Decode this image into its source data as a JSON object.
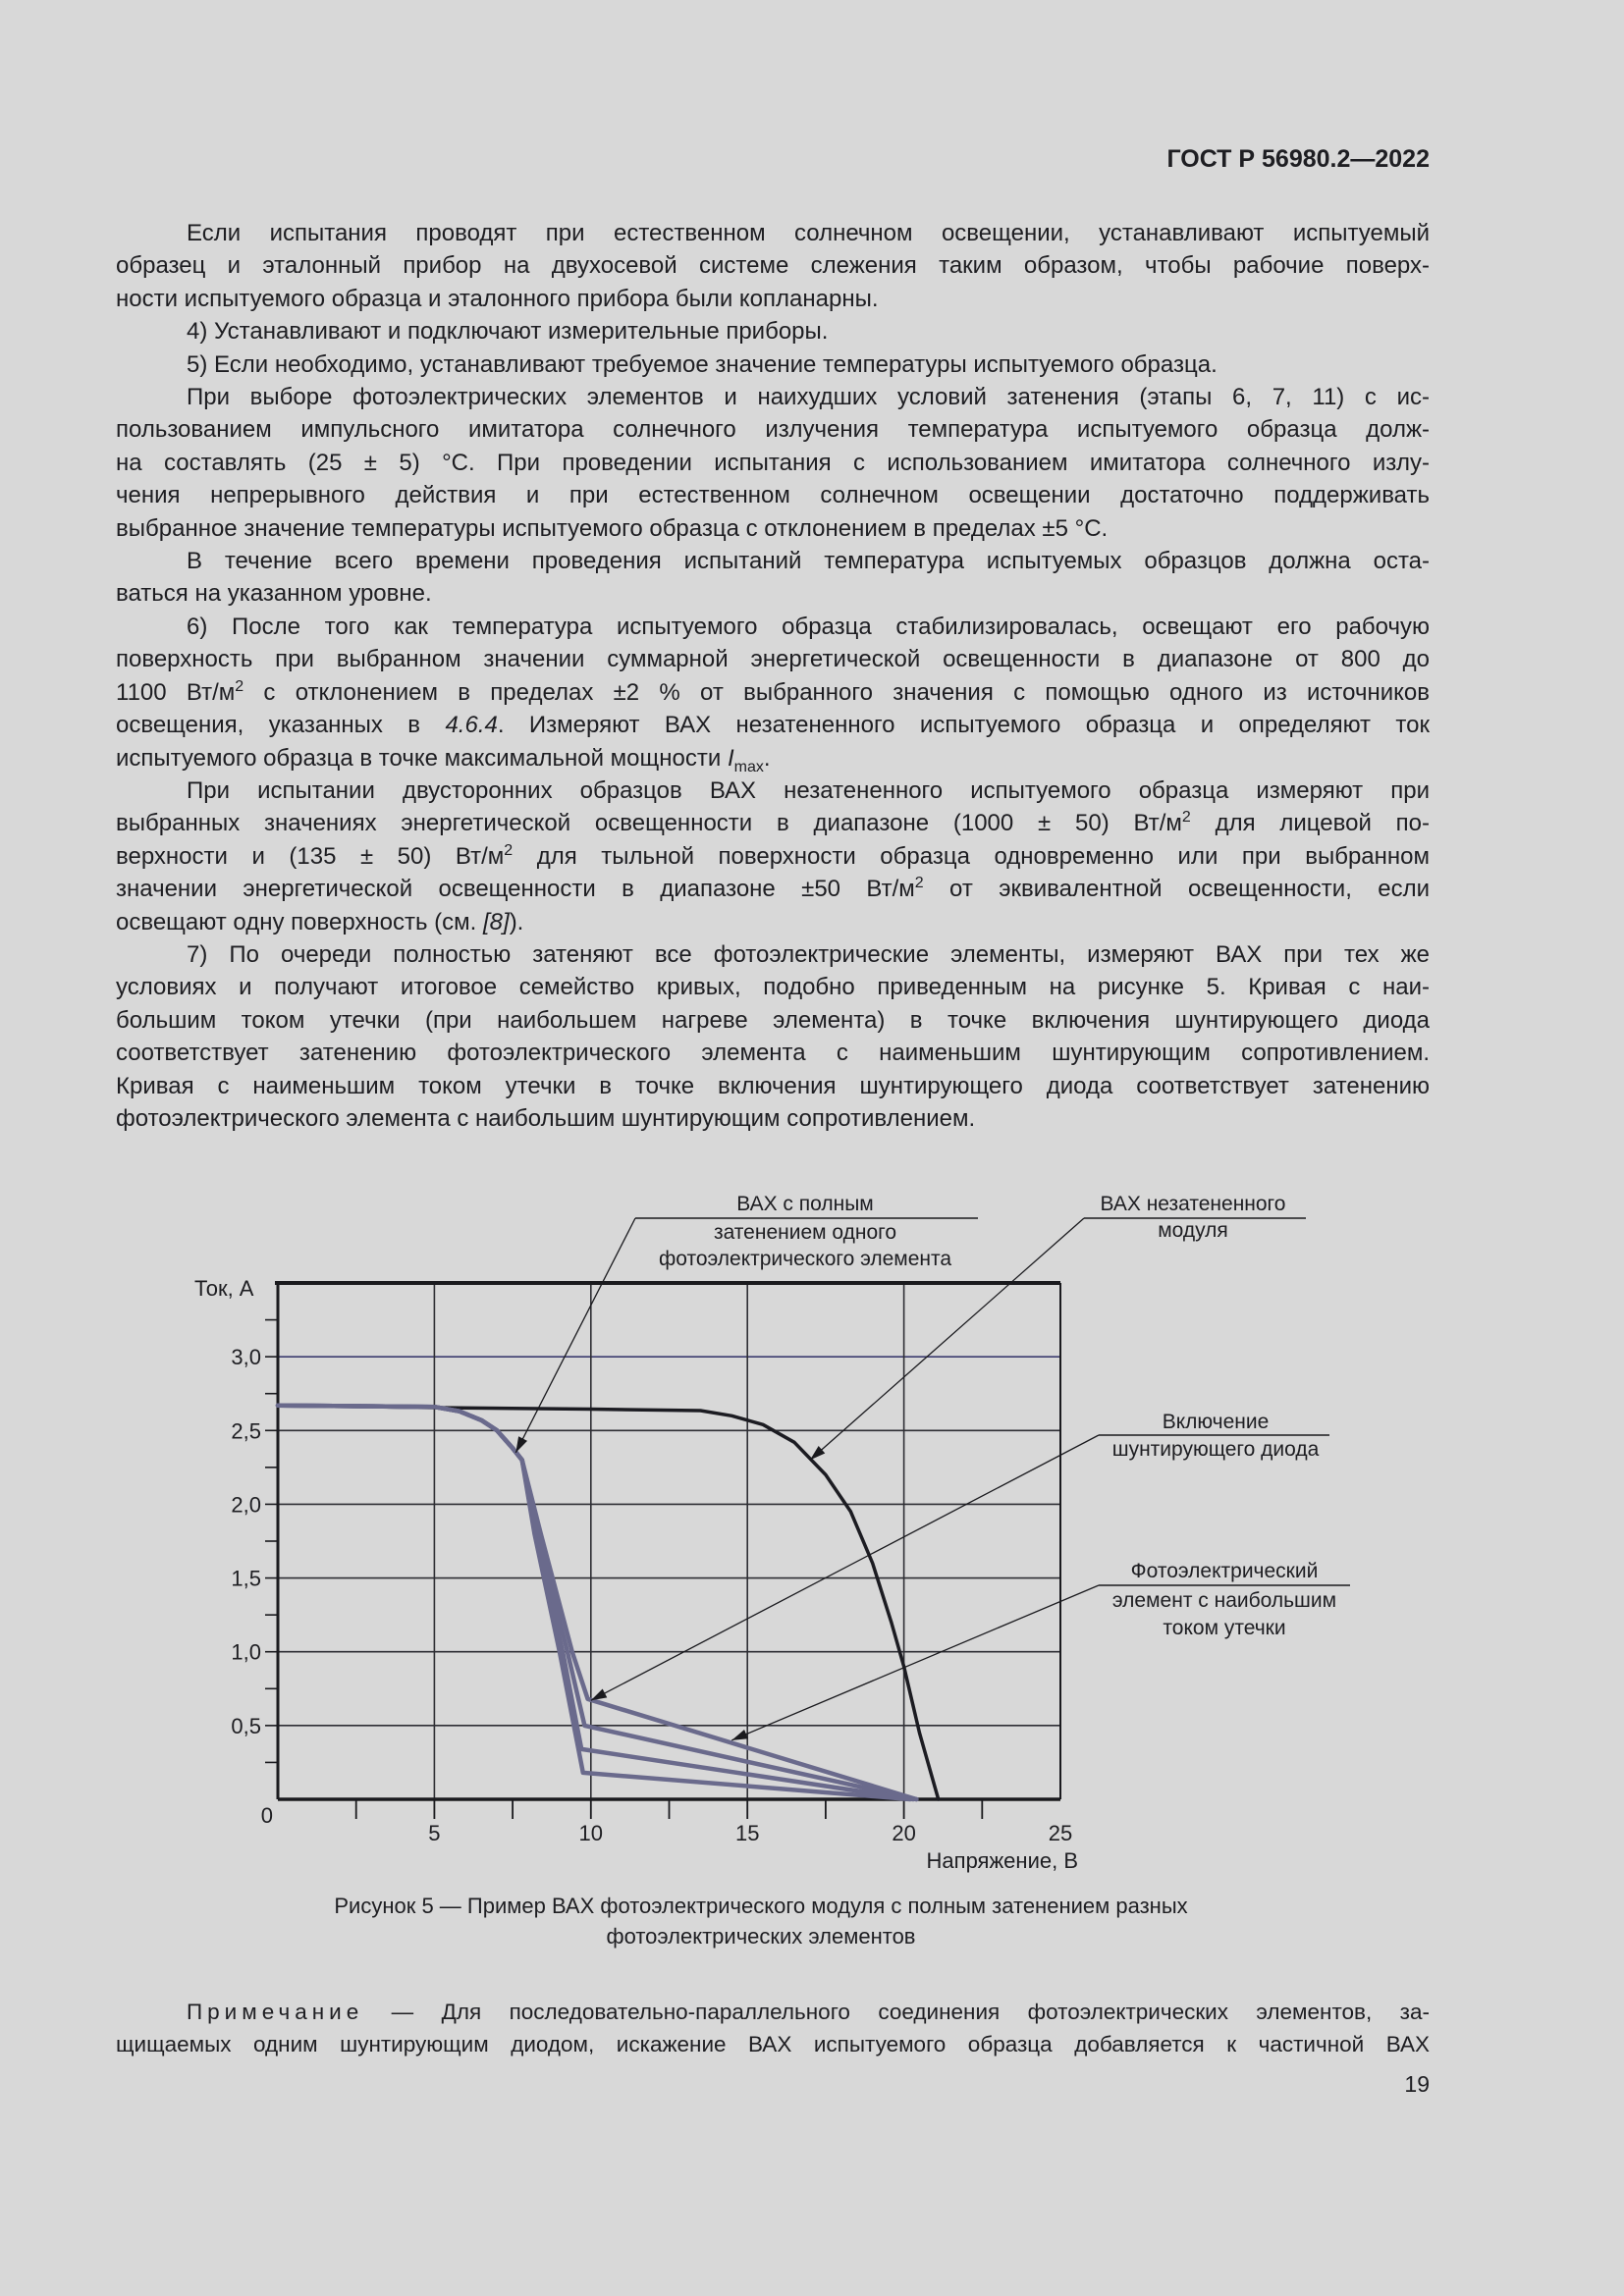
{
  "header": {
    "doc_id": "ГОСТ Р 56980.2—2022"
  },
  "body": {
    "paragraphs": [
      {
        "lines": [
          [
            {
              "t": "Если испытания проводят при естественном солнечном освещении, устанавливают испытуемый"
            }
          ],
          [
            {
              "t": "образец и эталонный прибор на двухосевой системе слежения таким образом, чтобы рабочие поверх-"
            }
          ],
          [
            {
              "t": "ности испытуемого образца и эталонного прибора были копланарны."
            }
          ]
        ]
      },
      {
        "lines": [
          [
            {
              "t": "4) Устанавливают и подключают измерительные приборы."
            }
          ]
        ]
      },
      {
        "lines": [
          [
            {
              "t": "5) Если необходимо, устанавливают требуемое значение температуры испытуемого образца."
            }
          ]
        ]
      },
      {
        "lines": [
          [
            {
              "t": "При выборе фотоэлектрических элементов и наихудших условий затенения (этапы 6, 7, 11) с ис-"
            }
          ],
          [
            {
              "t": "пользованием импульсного имитатора солнечного излучения температура испытуемого образца долж-"
            }
          ],
          [
            {
              "t": "на составлять (25 ± 5) °C. При проведении испытания с использованием имитатора солнечного излу-"
            }
          ],
          [
            {
              "t": "чения непрерывного действия и при естественном солнечном освещении достаточно поддерживать"
            }
          ],
          [
            {
              "t": "выбранное значение температуры испытуемого образца с отклонением в пределах ±5 °C."
            }
          ]
        ]
      },
      {
        "lines": [
          [
            {
              "t": "В течение всего времени проведения испытаний температура испытуемых образцов должна оста-"
            }
          ],
          [
            {
              "t": "ваться на указанном уровне."
            }
          ]
        ]
      },
      {
        "lines": [
          [
            {
              "t": "6) После того как температура испытуемого образца стабилизировалась, освещают его рабочую"
            }
          ],
          [
            {
              "t": "поверхность при выбранном значении суммарной энергетической освещенности в диапазоне от 800 до"
            }
          ],
          [
            {
              "t": "1100 Вт/м"
            },
            {
              "sup": "2"
            },
            {
              "t": " с отклонением в пределах ±2 % от выбранного значения с помощью одного из источников"
            }
          ],
          [
            {
              "t": "освещения, указанных в "
            },
            {
              "i": "4.6.4"
            },
            {
              "t": ". Измеряют ВАХ незатененного испытуемого образца и определяют ток"
            }
          ],
          [
            {
              "t": "испытуемого образца в точке максимальной мощности "
            },
            {
              "i": "I"
            },
            {
              "sub": "max"
            },
            {
              "t": "."
            }
          ]
        ]
      },
      {
        "lines": [
          [
            {
              "t": "При испытании двусторонних образцов ВАХ незатененного испытуемого образца измеряют при"
            }
          ],
          [
            {
              "t": "выбранных значениях энергетической освещенности в диапазоне (1000 ± 50) Вт/м"
            },
            {
              "sup": "2"
            },
            {
              "t": " для лицевой по-"
            }
          ],
          [
            {
              "t": "верхности и (135 ± 50) Вт/м"
            },
            {
              "sup": "2"
            },
            {
              "t": " для тыльной поверхности образца одновременно или при выбранном"
            }
          ],
          [
            {
              "t": "значении энергетической освещенности в диапазоне ±50 Вт/м"
            },
            {
              "sup": "2"
            },
            {
              "t": " от эквивалентной освещенности, если"
            }
          ],
          [
            {
              "t": "освещают одну поверхность (см. "
            },
            {
              "i": "[8]"
            },
            {
              "t": ")."
            }
          ]
        ]
      },
      {
        "lines": [
          [
            {
              "t": "7) По очереди полностью затеняют все фотоэлектрические элементы, измеряют ВАХ при тех же"
            }
          ],
          [
            {
              "t": "условиях и получают итоговое семейство кривых, подобно приведенным на рисунке 5. Кривая с наи-"
            }
          ],
          [
            {
              "t": "большим током утечки (при наибольшем нагреве элемента) в точке включения шунтирующего диода"
            }
          ],
          [
            {
              "t": "соответствует затенению фотоэлектрического элемента с наименьшим шунтирующим сопротивлением."
            }
          ],
          [
            {
              "t": "Кривая с наименьшим током утечки в точке включения шунтирующего диода соответствует затенению"
            }
          ],
          [
            {
              "t": "фотоэлектрического элемента с наибольшим шунтирующим сопротивлением."
            }
          ]
        ]
      }
    ]
  },
  "chart_data": {
    "type": "line",
    "xlabel": "Напряжение, В",
    "ylabel": "Ток, А",
    "xlim": [
      0,
      25
    ],
    "ylim": [
      0,
      3.5
    ],
    "x_ticks": [
      "5",
      "10",
      "15",
      "20",
      "25"
    ],
    "x_tick_values": [
      5,
      10,
      15,
      20,
      25
    ],
    "y_ticks": [
      "0",
      "0,5",
      "1,0",
      "1,5",
      "2,0",
      "2,5",
      "3,0"
    ],
    "y_tick_values": [
      0,
      0.5,
      1.0,
      1.5,
      2.0,
      2.5,
      3.0
    ],
    "grid": true,
    "colors": {
      "unshaded": "#1c1c22",
      "shaded": "#6a6a8c",
      "grid": "#2e2e34"
    },
    "series": [
      {
        "points": [
          [
            0,
            2.67
          ],
          [
            5,
            2.655
          ],
          [
            10,
            2.645
          ],
          [
            13.5,
            2.635
          ],
          [
            14.5,
            2.6
          ],
          [
            15.5,
            2.54
          ],
          [
            16.5,
            2.42
          ],
          [
            17.5,
            2.2
          ],
          [
            18.3,
            1.95
          ],
          [
            19,
            1.6
          ],
          [
            19.6,
            1.2
          ],
          [
            20,
            0.9
          ],
          [
            20.5,
            0.45
          ],
          [
            21.1,
            0
          ]
        ]
      },
      {
        "points": [
          [
            0,
            2.67
          ],
          [
            5,
            2.66
          ],
          [
            5.8,
            2.63
          ],
          [
            6.5,
            2.57
          ],
          [
            7,
            2.5
          ],
          [
            7.5,
            2.38
          ],
          [
            7.8,
            2.3
          ],
          [
            8.4,
            1.8
          ],
          [
            9.4,
            1.0
          ],
          [
            9.9,
            0.68
          ],
          [
            20.4,
            0
          ]
        ]
      },
      {
        "points": [
          [
            0,
            2.67
          ],
          [
            5,
            2.66
          ],
          [
            5.8,
            2.63
          ],
          [
            6.5,
            2.57
          ],
          [
            7,
            2.5
          ],
          [
            7.5,
            2.38
          ],
          [
            7.8,
            2.3
          ],
          [
            8.3,
            1.8
          ],
          [
            9.25,
            1.0
          ],
          [
            9.8,
            0.5
          ],
          [
            20.4,
            0
          ]
        ]
      },
      {
        "points": [
          [
            0,
            2.67
          ],
          [
            5,
            2.66
          ],
          [
            5.8,
            2.63
          ],
          [
            6.5,
            2.57
          ],
          [
            7,
            2.5
          ],
          [
            7.5,
            2.38
          ],
          [
            7.8,
            2.3
          ],
          [
            8.25,
            1.8
          ],
          [
            9.1,
            1.0
          ],
          [
            9.7,
            0.34
          ],
          [
            20.3,
            0
          ]
        ]
      },
      {
        "points": [
          [
            0,
            2.67
          ],
          [
            5,
            2.66
          ],
          [
            5.8,
            2.63
          ],
          [
            6.5,
            2.57
          ],
          [
            7,
            2.5
          ],
          [
            7.5,
            2.38
          ],
          [
            7.8,
            2.3
          ],
          [
            8.2,
            1.8
          ],
          [
            9.0,
            1.0
          ],
          [
            9.75,
            0.18
          ],
          [
            20.2,
            0
          ]
        ]
      }
    ],
    "annotations": [
      {
        "lines": [
          "ВАХ с полным",
          "затенением одного",
          "фотоэлектрического элемента"
        ],
        "target": [
          7.6,
          2.35
        ]
      },
      {
        "lines": [
          "ВАХ незатененного",
          "модуля"
        ],
        "target": [
          17.0,
          2.3
        ]
      },
      {
        "lines": [
          "Включение",
          "шунтирующего диода"
        ],
        "target": [
          10.0,
          0.67
        ]
      },
      {
        "lines": [
          "Фотоэлектрический",
          "элемент с наибольшим",
          "током утечки"
        ],
        "target": [
          14.5,
          0.4
        ]
      }
    ]
  },
  "figure": {
    "caption_line1": "Рисунок 5 — Пример ВАХ фотоэлектрического модуля с полным затенением разных",
    "caption_line2": "фотоэлектрических элементов"
  },
  "note": {
    "label": "Примечание",
    "line1": " — Для последовательно-параллельного соединения фотоэлектрических элементов, за-",
    "line2": "щищаемых одним шунтирующим диодом, искажение ВАХ испытуемого образца добавляется к частичной ВАХ"
  },
  "page_number": "19"
}
